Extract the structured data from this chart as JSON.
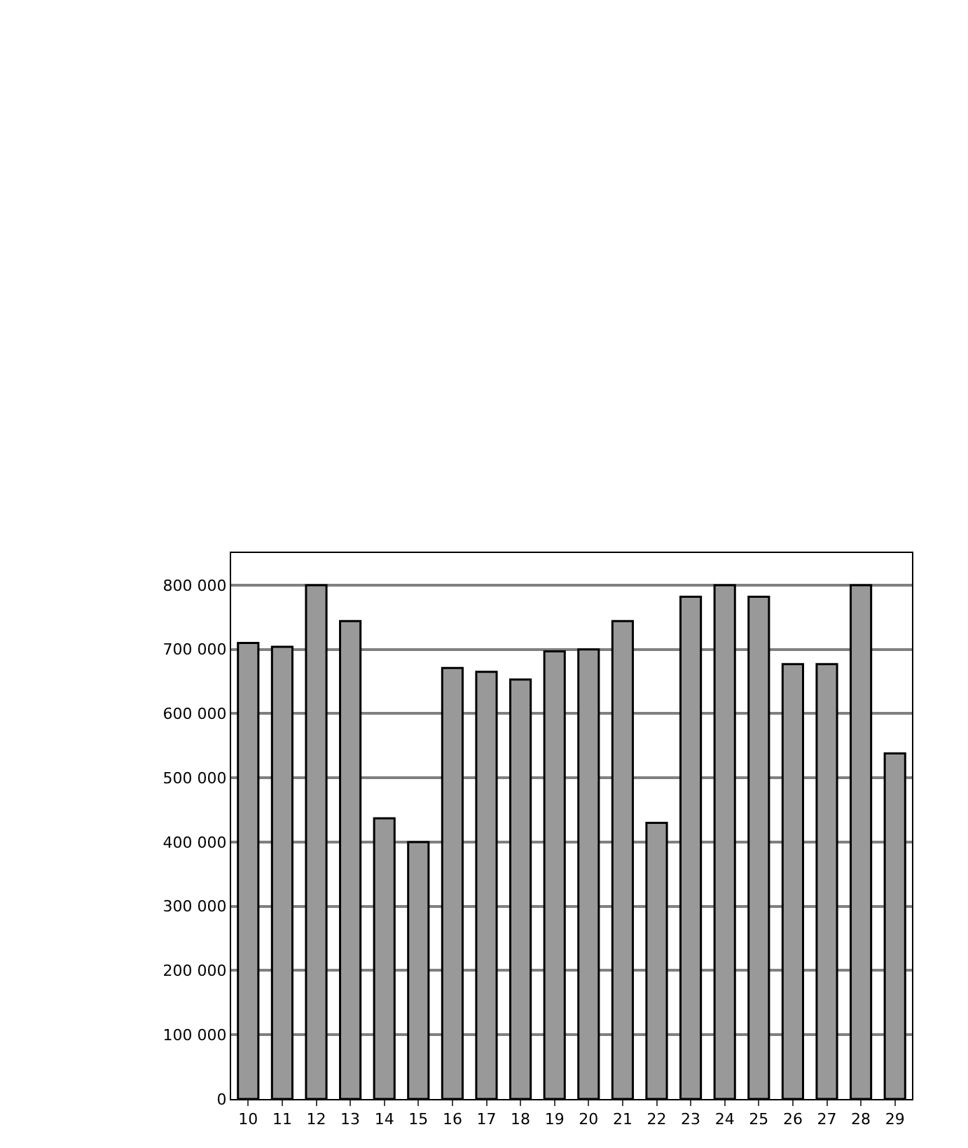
{
  "chart_data": {
    "type": "bar",
    "categories": [
      "10",
      "11",
      "12",
      "13",
      "14",
      "15",
      "16",
      "17",
      "18",
      "19",
      "20",
      "21",
      "22",
      "23",
      "24",
      "25",
      "26",
      "27",
      "28",
      "29"
    ],
    "values": [
      710000,
      704000,
      800000,
      744000,
      437000,
      400000,
      671000,
      665000,
      653000,
      697000,
      700000,
      744000,
      430000,
      782000,
      800000,
      782000,
      677000,
      677000,
      800000,
      538000
    ],
    "color": "#999999",
    "ylim": [
      0,
      850000
    ],
    "yticks": [
      {
        "value": 0,
        "label": "0"
      },
      {
        "value": 100000,
        "label": "100 000"
      },
      {
        "value": 200000,
        "label": "200 000"
      },
      {
        "value": 300000,
        "label": "300 000"
      },
      {
        "value": 400000,
        "label": "400 000"
      },
      {
        "value": 500000,
        "label": "500 000"
      },
      {
        "value": 600000,
        "label": "600 000"
      },
      {
        "value": 700000,
        "label": "700 000"
      },
      {
        "value": 800000,
        "label": "800 000"
      }
    ],
    "grid": "y"
  }
}
